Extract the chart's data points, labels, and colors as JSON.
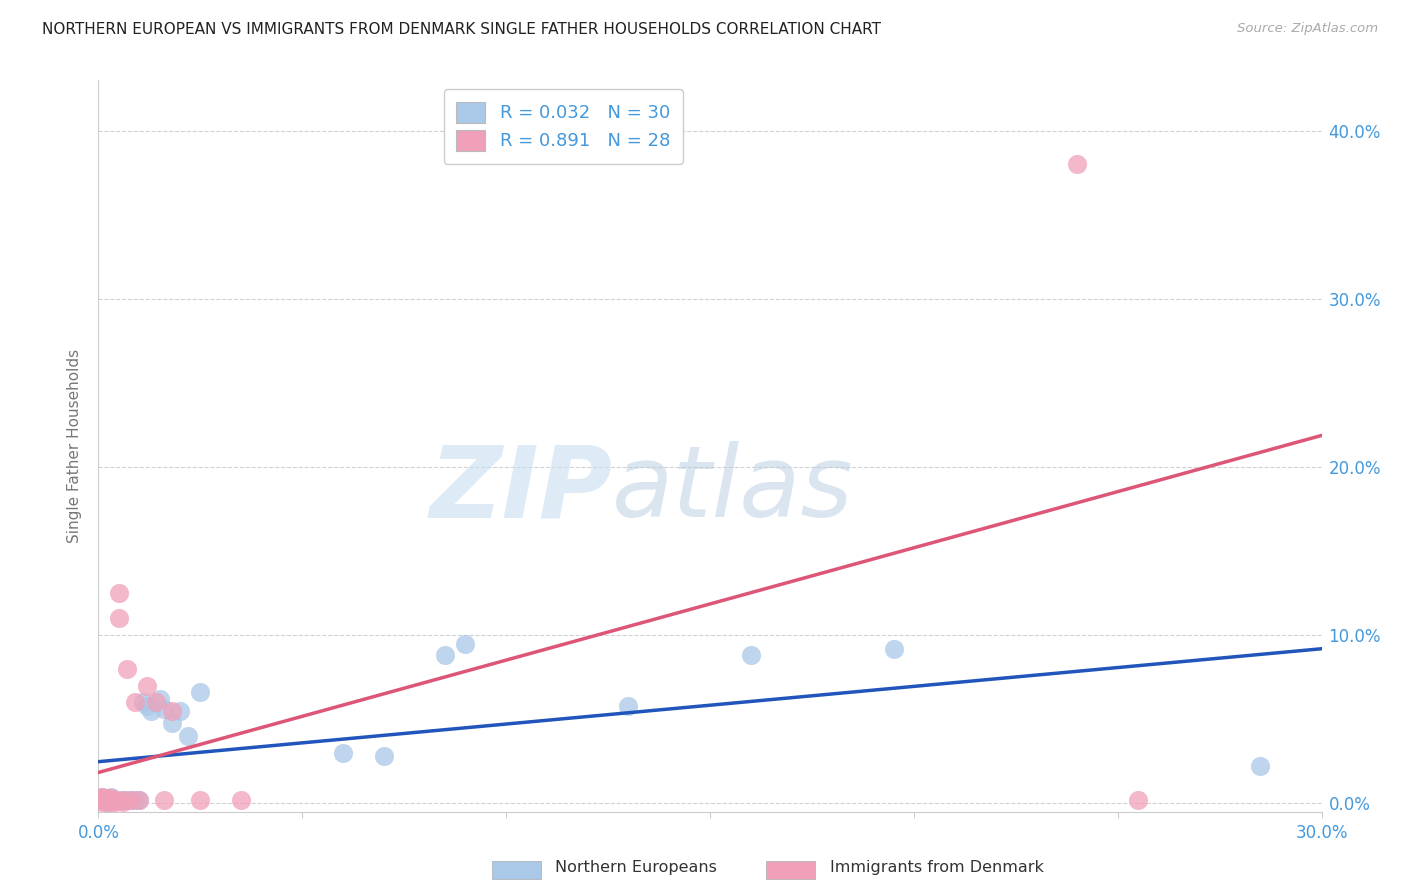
{
  "title": "NORTHERN EUROPEAN VS IMMIGRANTS FROM DENMARK SINGLE FATHER HOUSEHOLDS CORRELATION CHART",
  "source": "Source: ZipAtlas.com",
  "ylabel": "Single Father Households",
  "xlim": [
    0.0,
    0.3
  ],
  "ylim": [
    -0.005,
    0.43
  ],
  "watermark_zip": "ZIP",
  "watermark_atlas": "atlas",
  "series1_label": "Northern Europeans",
  "series1_color": "#aac8e8",
  "series1_line_color": "#2255bb",
  "series1_R": 0.032,
  "series1_N": 30,
  "series2_label": "Immigrants from Denmark",
  "series2_color": "#f0a0b8",
  "series2_line_color": "#dd5577",
  "series2_R": 0.891,
  "series2_N": 28,
  "northern_europeans_x": [
    0.001,
    0.001,
    0.002,
    0.002,
    0.003,
    0.003,
    0.004,
    0.005,
    0.006,
    0.007,
    0.008,
    0.009,
    0.01,
    0.011,
    0.012,
    0.013,
    0.015,
    0.016,
    0.018,
    0.02,
    0.022,
    0.025,
    0.06,
    0.07,
    0.085,
    0.09,
    0.13,
    0.16,
    0.195,
    0.285
  ],
  "northern_europeans_y": [
    0.002,
    0.004,
    0.001,
    0.003,
    0.002,
    0.004,
    0.002,
    0.002,
    0.002,
    0.002,
    0.002,
    0.002,
    0.002,
    0.06,
    0.058,
    0.055,
    0.062,
    0.056,
    0.048,
    0.055,
    0.04,
    0.066,
    0.03,
    0.028,
    0.088,
    0.095,
    0.058,
    0.088,
    0.092,
    0.022
  ],
  "denmark_x": [
    0.001,
    0.001,
    0.001,
    0.001,
    0.002,
    0.002,
    0.002,
    0.003,
    0.003,
    0.003,
    0.004,
    0.004,
    0.005,
    0.005,
    0.006,
    0.006,
    0.007,
    0.008,
    0.009,
    0.01,
    0.012,
    0.014,
    0.016,
    0.018,
    0.025,
    0.035,
    0.24,
    0.255
  ],
  "denmark_y": [
    0.001,
    0.002,
    0.003,
    0.004,
    0.001,
    0.002,
    0.003,
    0.001,
    0.002,
    0.003,
    0.001,
    0.002,
    0.11,
    0.125,
    0.001,
    0.002,
    0.08,
    0.002,
    0.06,
    0.002,
    0.07,
    0.06,
    0.002,
    0.055,
    0.002,
    0.002,
    0.38,
    0.002
  ],
  "background_color": "#ffffff",
  "grid_color": "#cccccc",
  "title_color": "#222222",
  "axis_color": "#4499dd",
  "yticks": [
    0.0,
    0.1,
    0.2,
    0.3,
    0.4
  ],
  "xtick_show": [
    0.0,
    0.3
  ]
}
